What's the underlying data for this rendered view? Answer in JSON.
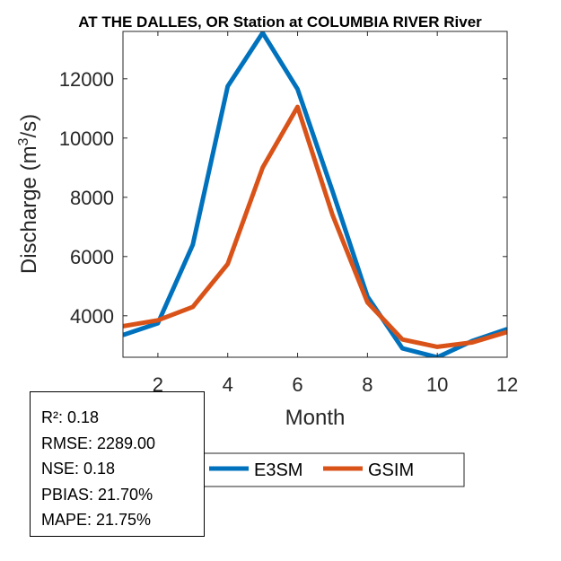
{
  "chart_data": {
    "type": "line",
    "title": "AT THE DALLES, OR  Station at  COLUMBIA RIVER  River",
    "xlabel": "Month",
    "ylabel_main": "Discharge (m",
    "ylabel_sup": "3",
    "ylabel_tail": "/s)",
    "xlim": [
      1,
      12
    ],
    "ylim": [
      2600,
      13600
    ],
    "xticks": [
      2,
      4,
      6,
      8,
      10,
      12
    ],
    "yticks": [
      4000,
      6000,
      8000,
      10000,
      12000
    ],
    "categories": [
      1,
      2,
      3,
      4,
      5,
      6,
      7,
      8,
      9,
      10,
      11,
      12
    ],
    "series": [
      {
        "name": "E3SM",
        "color": "#0072BD",
        "values": [
          3350,
          3750,
          6400,
          11750,
          13550,
          11650,
          8200,
          4650,
          2900,
          2600,
          3150,
          3550
        ]
      },
      {
        "name": "GSIM",
        "color": "#D95319",
        "values": [
          3650,
          3850,
          4300,
          5750,
          9000,
          11050,
          7400,
          4450,
          3200,
          2950,
          3100,
          3450
        ]
      }
    ],
    "legend_position": "bottom-right"
  },
  "stats": {
    "r2": "R²: 0.18",
    "rmse": "RMSE: 2289.00",
    "nse": "NSE: 0.18",
    "pbias": "PBIAS: 21.70%",
    "mape": "MAPE: 21.75%"
  }
}
